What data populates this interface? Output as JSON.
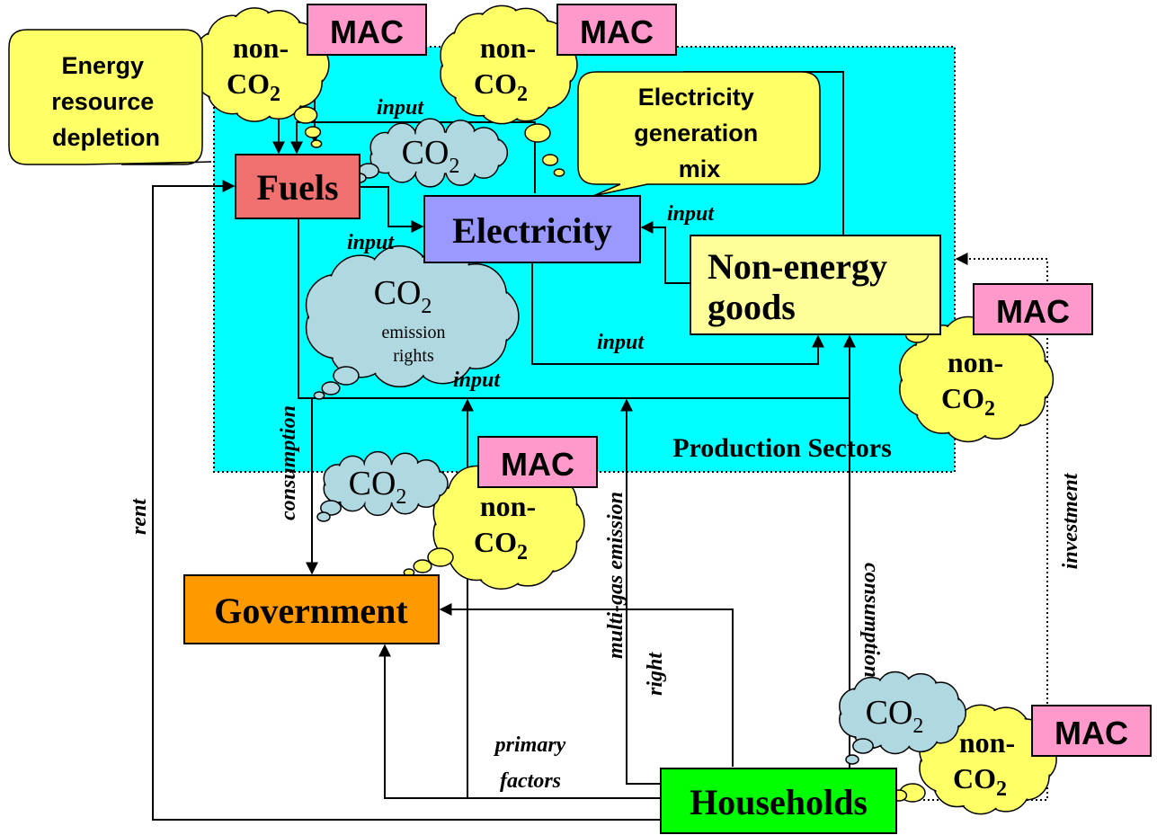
{
  "region": {
    "label": "Production Sectors"
  },
  "nodes": {
    "fuels": "Fuels",
    "electricity": "Electricity",
    "non_energy": [
      "Non-energy",
      "goods"
    ],
    "government": "Government",
    "households": "Households"
  },
  "callouts": [
    {
      "lines": [
        "Energy",
        "resource",
        "depletion"
      ]
    },
    {
      "lines": [
        "Electricity",
        "generation",
        "mix"
      ]
    }
  ],
  "mac": [
    "MAC",
    "MAC",
    "MAC",
    "MAC",
    "MAC"
  ],
  "non_co2": [
    {
      "lines": [
        "non-",
        "CO"
      ],
      "sub": "2"
    },
    {
      "lines": [
        "non-",
        "CO"
      ],
      "sub": "2"
    },
    {
      "lines": [
        "non-",
        "CO"
      ],
      "sub": "2"
    },
    {
      "lines": [
        "non-",
        "CO"
      ],
      "sub": "2"
    },
    {
      "lines": [
        "non-",
        "CO"
      ],
      "sub": "2"
    }
  ],
  "co2": [
    {
      "text": "CO",
      "sub": "2"
    },
    {
      "text": "CO",
      "sub": "2"
    },
    {
      "text": "CO",
      "sub": "2"
    }
  ],
  "emission_rights": {
    "text": "CO",
    "sub": "2",
    "lines": [
      "emission",
      "rights"
    ]
  },
  "edge_labels": {
    "input": [
      "input",
      "input",
      "input",
      "input",
      "input"
    ],
    "consumption": [
      "consumption",
      "consumption"
    ],
    "rent": "rent",
    "primary_factors": [
      "primary",
      "factors"
    ],
    "multi_gas": [
      "multi-gas emission",
      "right"
    ],
    "investment": "investment"
  }
}
